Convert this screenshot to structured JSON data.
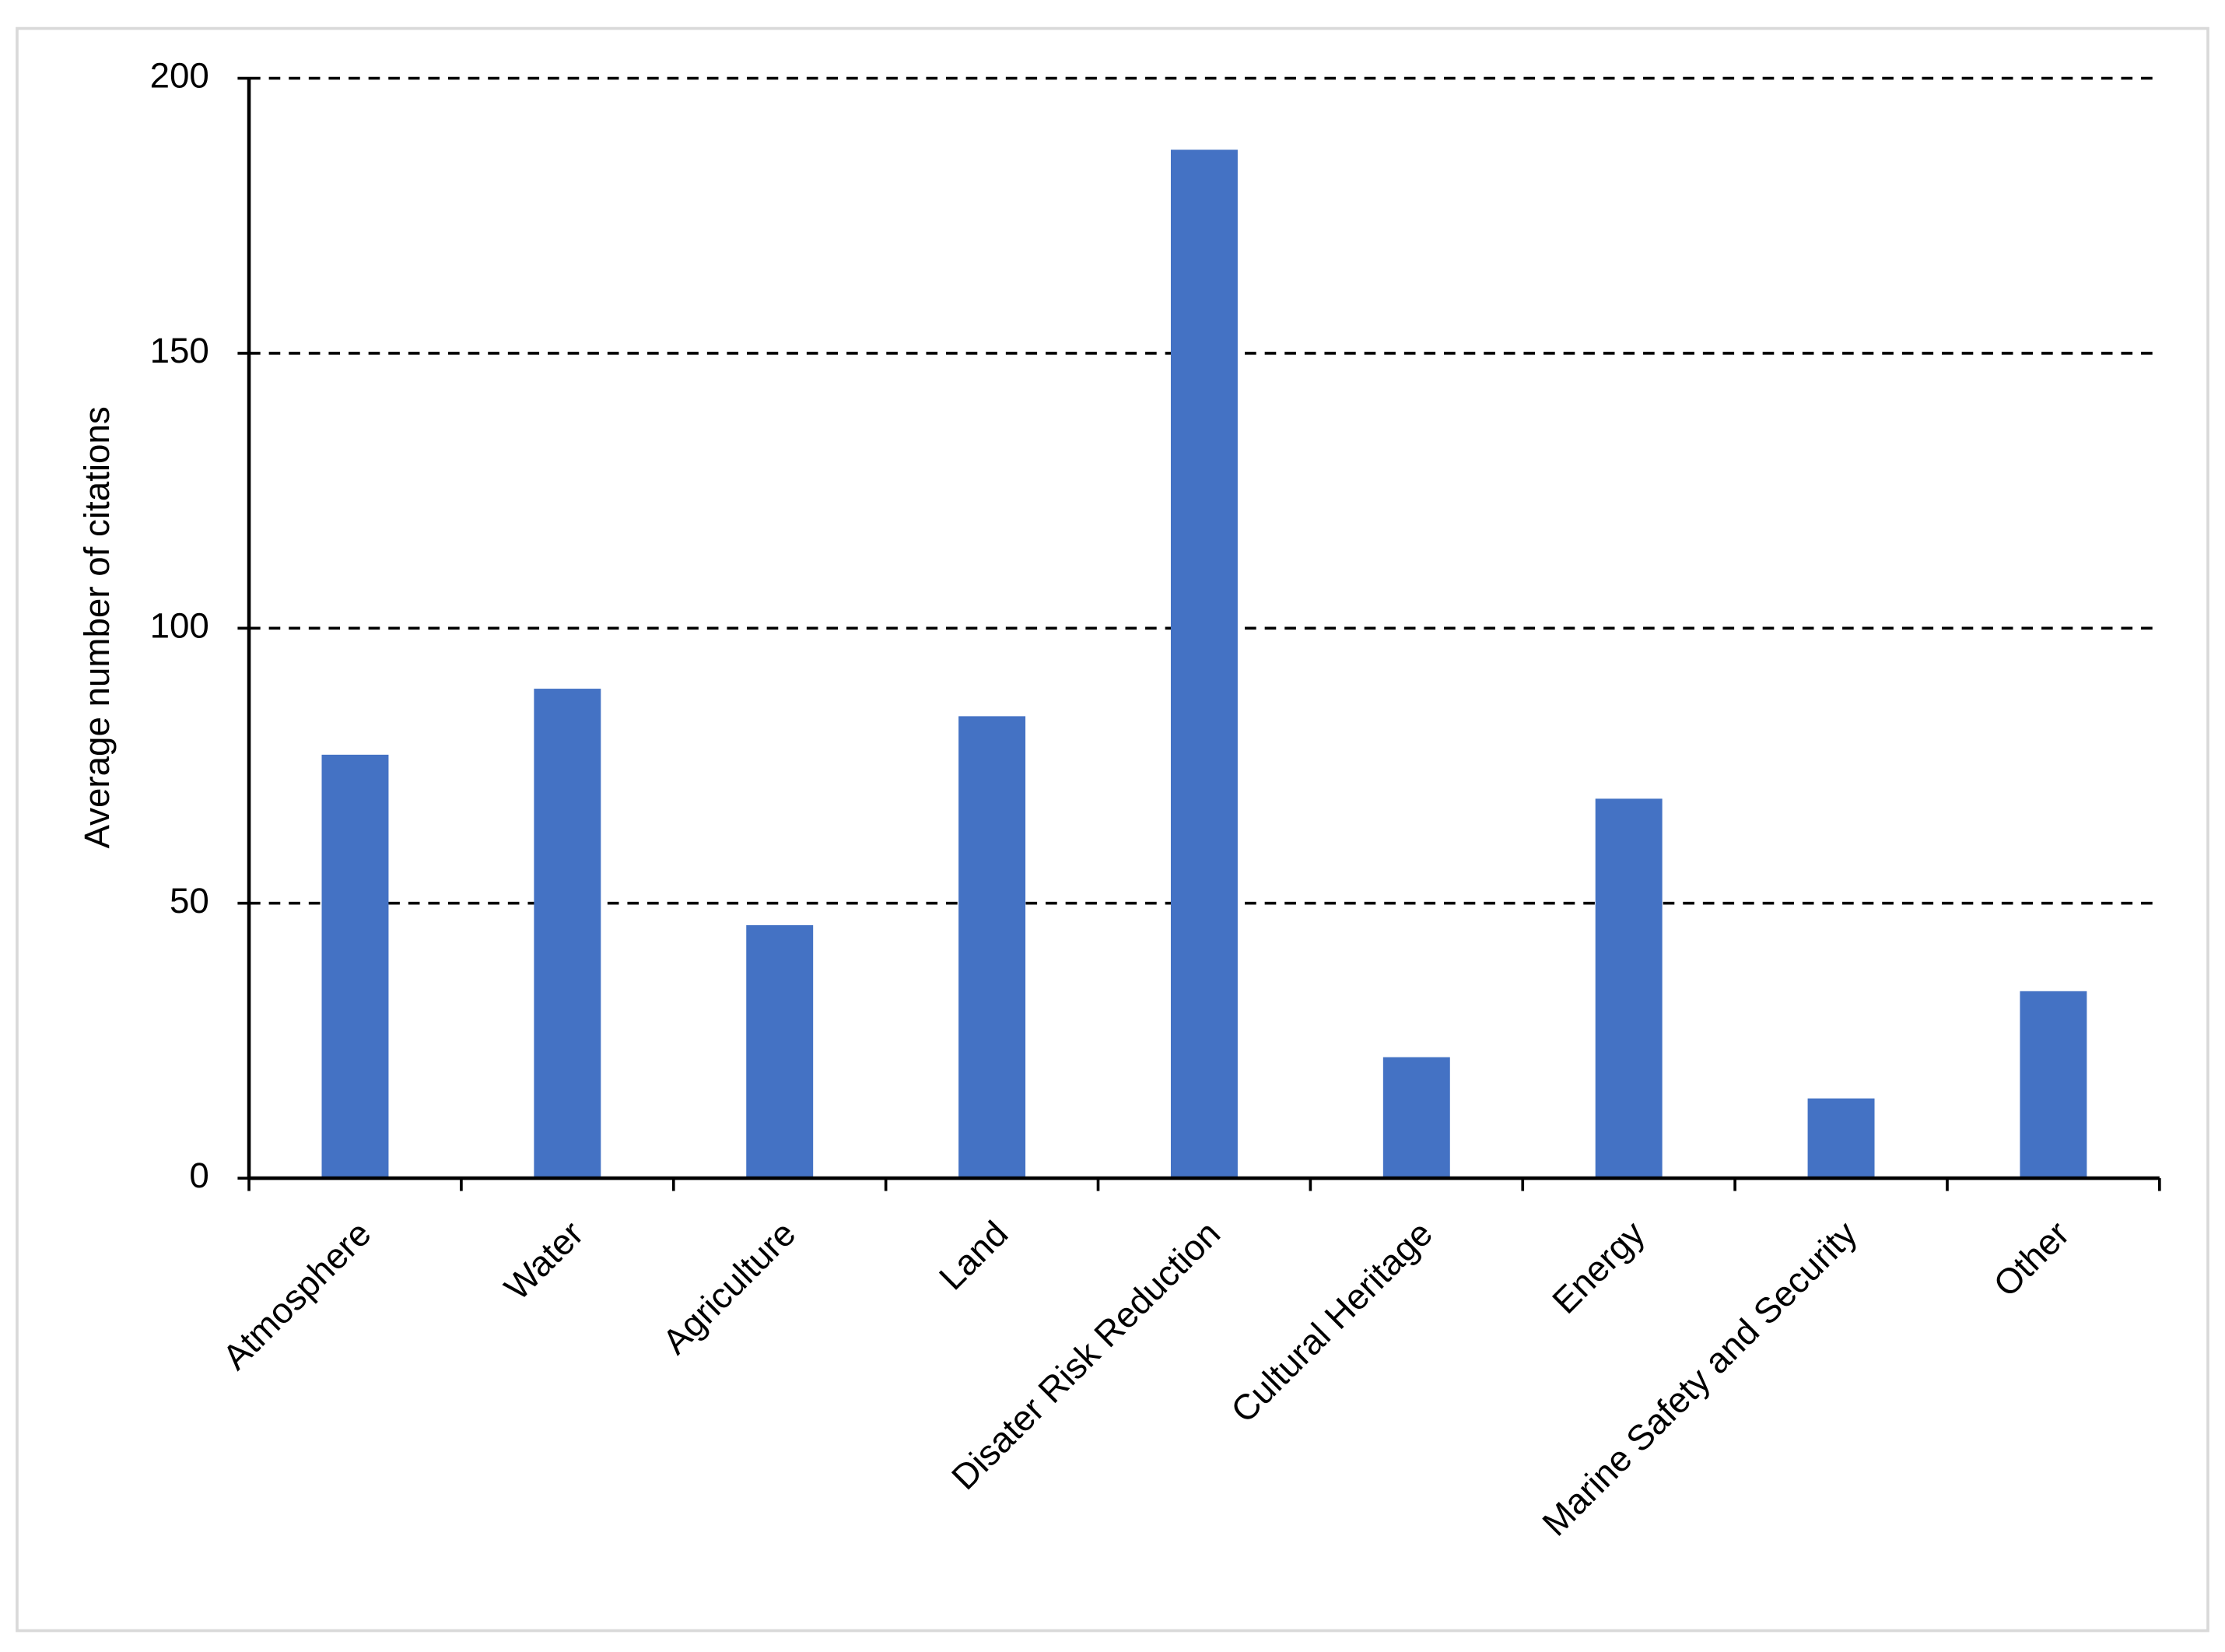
{
  "chart_data": {
    "type": "bar",
    "y_label": "Average number of citations",
    "categories": [
      "Atmosphere",
      "Water",
      "Agriculture",
      "Land",
      "Disater Risk Reduction",
      "Cultural Heritage",
      "Energy",
      "Marine Safety and Security",
      "Other"
    ],
    "values": [
      77,
      89,
      46,
      84,
      187,
      22,
      69,
      14.5,
      34
    ],
    "color": "#4472c4",
    "ylim": [
      0,
      200
    ],
    "yticks": [
      0,
      50,
      100,
      150,
      200
    ],
    "grid": true
  }
}
